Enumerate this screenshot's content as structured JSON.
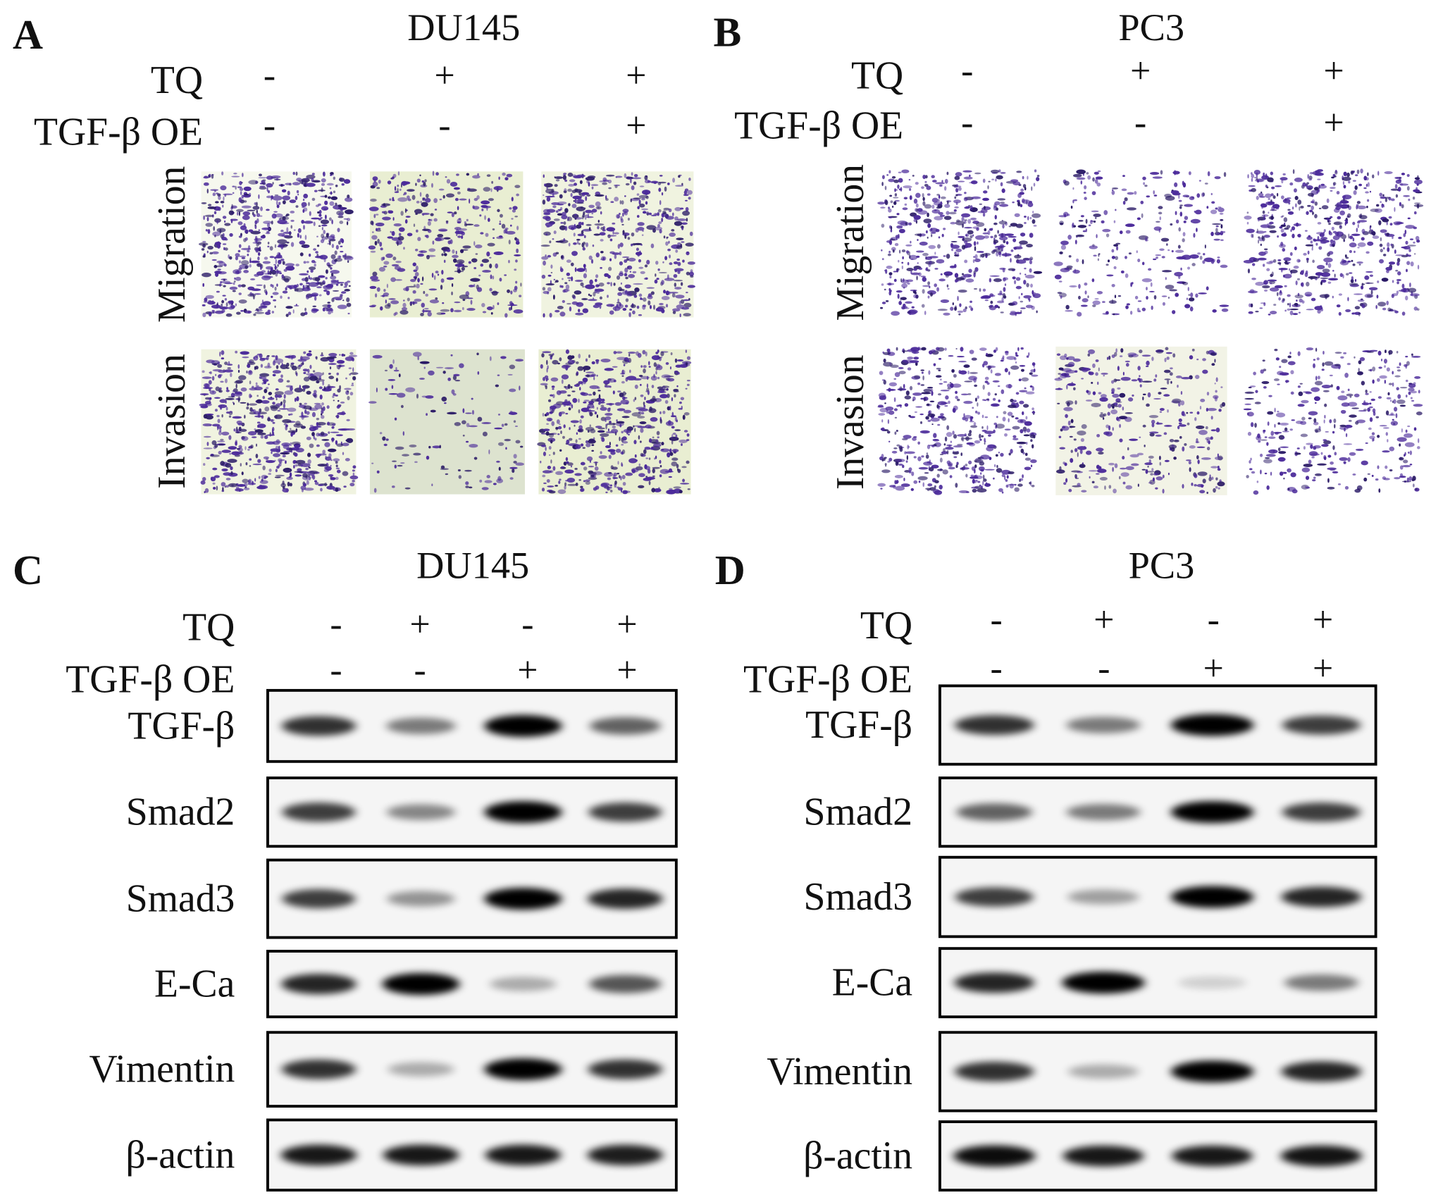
{
  "panels": [
    {
      "label": "A",
      "cell_line": "DU145",
      "conditions": [
        {
          "name": "TQ",
          "values": [
            "-",
            "+",
            "+"
          ]
        },
        {
          "name": "TGF-β OE",
          "values": [
            "-",
            "-",
            "+"
          ]
        }
      ],
      "rows": [
        "Migration",
        "Invasion"
      ]
    },
    {
      "label": "B",
      "cell_line": "PC3",
      "conditions": [
        {
          "name": "TQ",
          "values": [
            "-",
            "+",
            "+"
          ]
        },
        {
          "name": "TGF-β OE",
          "values": [
            "-",
            "-",
            "+"
          ]
        }
      ],
      "rows": [
        "Migration",
        "Invasion"
      ]
    },
    {
      "label": "C",
      "cell_line": "DU145",
      "conditions": [
        {
          "name": "TQ",
          "values": [
            "-",
            "+",
            "-",
            "+"
          ]
        },
        {
          "name": "TGF-β OE",
          "values": [
            "-",
            "-",
            "+",
            "+"
          ]
        }
      ],
      "proteins": [
        "TGF-β",
        "Smad2",
        "Smad3",
        "E-Ca",
        "Vimentin",
        "β-actin"
      ]
    },
    {
      "label": "D",
      "cell_line": "PC3",
      "conditions": [
        {
          "name": "TQ",
          "values": [
            "-",
            "+",
            "-",
            "+"
          ]
        },
        {
          "name": "TGF-β OE",
          "values": [
            "-",
            "-",
            "+",
            "+"
          ]
        }
      ],
      "proteins": [
        "TGF-β",
        "Smad2",
        "Smad3",
        "E-Ca",
        "Vimentin",
        "β-actin"
      ]
    }
  ]
}
